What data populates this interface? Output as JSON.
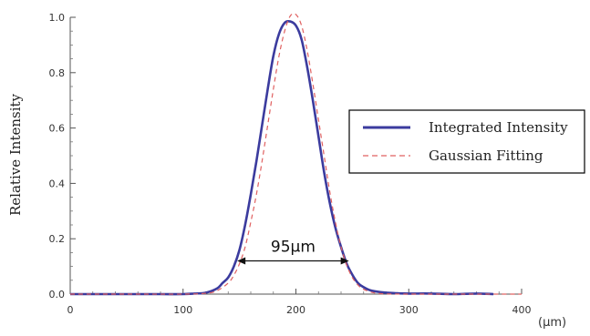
{
  "chart_data": {
    "type": "line",
    "xlabel": "",
    "x_unit_label": "(μm)",
    "ylabel": "Relative Intensity",
    "xlim": [
      0,
      400
    ],
    "ylim": [
      0,
      1.0
    ],
    "x_ticks": [
      0,
      100,
      200,
      300,
      400
    ],
    "y_ticks": [
      0.0,
      0.2,
      0.4,
      0.6,
      0.8,
      1.0
    ],
    "x_tick_labels": [
      "0",
      "100",
      "200",
      "300",
      "400"
    ],
    "y_tick_labels": [
      "0.0",
      "0.2",
      "0.4",
      "0.6",
      "0.8",
      "1.0"
    ],
    "grid": false,
    "legend_position": "right",
    "series": [
      {
        "name": "Integrated Intensity",
        "style": "solid",
        "color": "#3b3b9e",
        "x": [
          0,
          20,
          40,
          60,
          80,
          100,
          110,
          120,
          130,
          135,
          140,
          145,
          150,
          155,
          160,
          165,
          170,
          175,
          180,
          185,
          190,
          195,
          200,
          205,
          210,
          215,
          220,
          225,
          230,
          235,
          240,
          245,
          250,
          255,
          260,
          265,
          270,
          280,
          290,
          300,
          320,
          340,
          360,
          375
        ],
        "y": [
          0.0,
          0.0,
          0.0,
          0.0,
          0.0,
          0.0,
          0.002,
          0.005,
          0.02,
          0.04,
          0.06,
          0.1,
          0.16,
          0.25,
          0.36,
          0.48,
          0.61,
          0.74,
          0.86,
          0.94,
          0.98,
          0.985,
          0.97,
          0.92,
          0.82,
          0.7,
          0.57,
          0.44,
          0.33,
          0.24,
          0.17,
          0.11,
          0.07,
          0.04,
          0.025,
          0.015,
          0.01,
          0.005,
          0.003,
          0.002,
          0.002,
          0.0,
          0.002,
          0.0
        ]
      },
      {
        "name": "Gaussian Fitting",
        "style": "dashed",
        "color": "#e06060",
        "x": [
          0,
          50,
          100,
          120,
          130,
          140,
          145,
          150,
          155,
          160,
          165,
          170,
          175,
          180,
          185,
          190,
          195,
          200,
          205,
          210,
          215,
          220,
          225,
          230,
          235,
          240,
          245,
          250,
          255,
          260,
          270,
          280,
          300,
          350,
          400
        ],
        "y": [
          0.0,
          0.0,
          0.0,
          0.003,
          0.012,
          0.04,
          0.068,
          0.11,
          0.17,
          0.26,
          0.36,
          0.48,
          0.61,
          0.74,
          0.86,
          0.95,
          1.005,
          1.01,
          0.97,
          0.88,
          0.76,
          0.63,
          0.5,
          0.37,
          0.26,
          0.17,
          0.105,
          0.06,
          0.033,
          0.017,
          0.004,
          0.001,
          0.0,
          0.0,
          0.0
        ]
      }
    ],
    "annotations": [
      {
        "text": "95μm",
        "type": "double-arrow",
        "x_start": 148,
        "x_end": 247,
        "y": 0.12
      }
    ]
  }
}
